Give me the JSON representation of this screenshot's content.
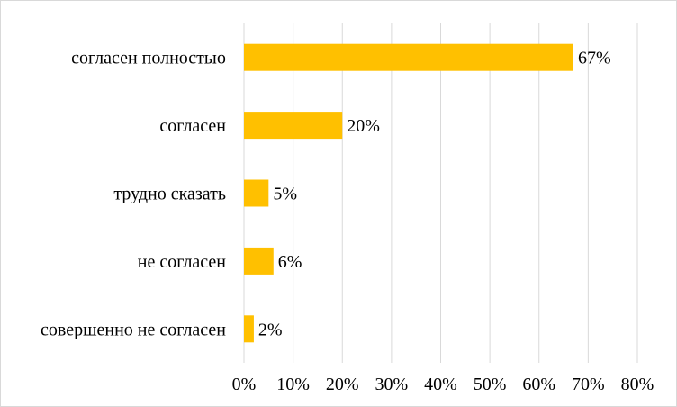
{
  "chart_data": {
    "type": "bar",
    "orientation": "horizontal",
    "categories": [
      "согласен полностью",
      "согласен",
      "трудно сказать",
      "не согласен",
      "совершенно не согласен"
    ],
    "values": [
      67,
      20,
      5,
      6,
      2
    ],
    "data_labels": [
      "67%",
      "20%",
      "5%",
      "6%",
      "2%"
    ],
    "xlim": [
      0,
      80
    ],
    "x_ticks": [
      0,
      10,
      20,
      30,
      40,
      50,
      60,
      70,
      80
    ],
    "x_tick_labels": [
      "0%",
      "10%",
      "20%",
      "30%",
      "40%",
      "50%",
      "60%",
      "70%",
      "80%"
    ],
    "grid": true,
    "legend": "none",
    "bar_color": "#FFC000",
    "grid_color": "#d9d9d9"
  }
}
